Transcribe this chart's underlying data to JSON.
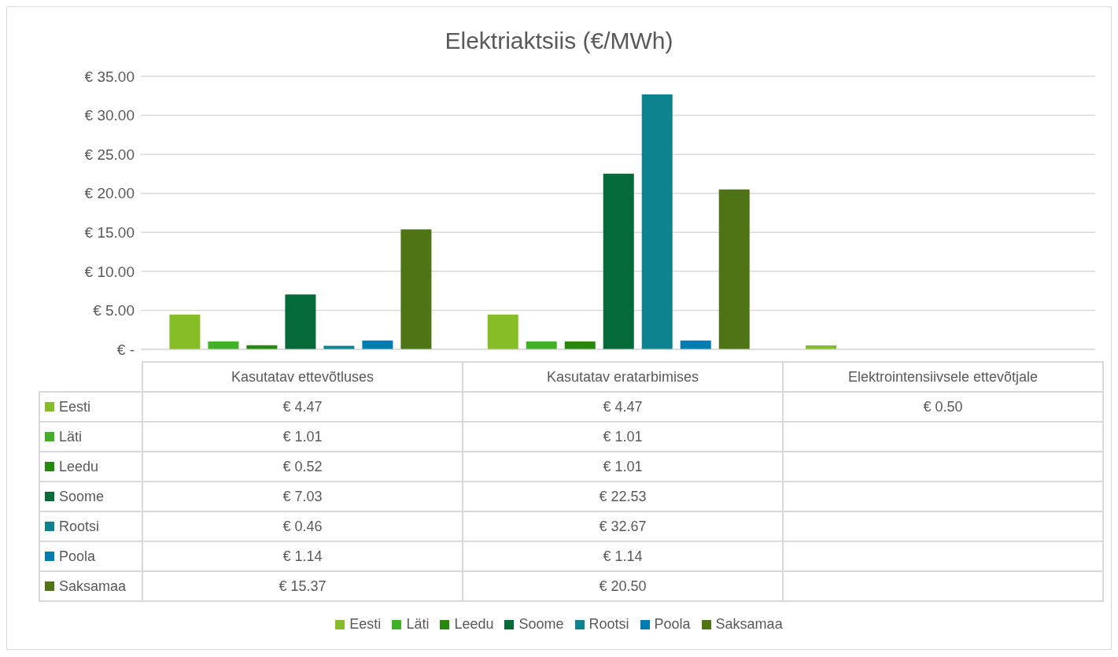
{
  "chart_data": {
    "type": "bar",
    "title": "Elektriaktsiis (€/MWh)",
    "categories": [
      "Kasutatav ettevõtluses",
      "Kasutatav eratarbimises",
      "Elektrointensiivsele ettevõtjale"
    ],
    "series": [
      {
        "name": "Eesti",
        "color": "#86bc25",
        "values": [
          4.47,
          4.47,
          0.5
        ],
        "value_labels": [
          "€ 4.47",
          "€ 4.47",
          "€ 0.50"
        ]
      },
      {
        "name": "Läti",
        "color": "#43b02a",
        "values": [
          1.01,
          1.01,
          null
        ],
        "value_labels": [
          "€ 1.01",
          "€ 1.01",
          null
        ]
      },
      {
        "name": "Leedu",
        "color": "#26890d",
        "values": [
          0.52,
          1.01,
          null
        ],
        "value_labels": [
          "€ 0.52",
          "€ 1.01",
          null
        ]
      },
      {
        "name": "Soome",
        "color": "#046a38",
        "values": [
          7.03,
          22.53,
          null
        ],
        "value_labels": [
          "€ 7.03",
          "€ 22.53",
          null
        ]
      },
      {
        "name": "Rootsi",
        "color": "#0d8390",
        "values": [
          0.46,
          32.67,
          null
        ],
        "value_labels": [
          "€ 0.46",
          "€ 32.67",
          null
        ]
      },
      {
        "name": "Poola",
        "color": "#007cb0",
        "values": [
          1.14,
          1.14,
          null
        ],
        "value_labels": [
          "€ 1.14",
          "€ 1.14",
          null
        ]
      },
      {
        "name": "Saksamaa",
        "color": "#4f7416",
        "values": [
          15.37,
          20.5,
          null
        ],
        "value_labels": [
          "€ 15.37",
          "€ 20.50",
          null
        ]
      }
    ],
    "ylim": [
      0,
      35
    ],
    "yticks": [
      {
        "value": 0,
        "label": "€ -"
      },
      {
        "value": 5,
        "label": "€ 5.00"
      },
      {
        "value": 10,
        "label": "€ 10.00"
      },
      {
        "value": 15,
        "label": "€ 15.00"
      },
      {
        "value": 20,
        "label": "€ 20.00"
      },
      {
        "value": 25,
        "label": "€ 25.00"
      },
      {
        "value": 30,
        "label": "€ 30.00"
      },
      {
        "value": 35,
        "label": "€ 35.00"
      }
    ],
    "grid": "y",
    "legend": "bottom"
  }
}
